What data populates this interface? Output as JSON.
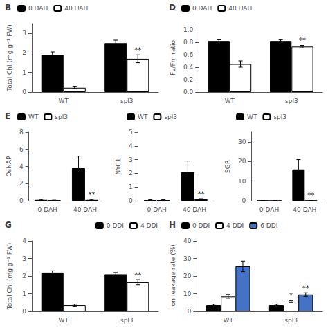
{
  "chart_data": [
    {
      "type": "bar",
      "title": "B",
      "categories": [
        "WT",
        "spl3"
      ],
      "series": [
        {
          "name": "0 DAH",
          "color": "black",
          "values": [
            1.9,
            2.5
          ],
          "errors": [
            0.15,
            0.15
          ]
        },
        {
          "name": "40 DAH",
          "color": "white",
          "values": [
            0.22,
            1.7
          ],
          "errors": [
            0.05,
            0.2
          ]
        }
      ],
      "ylabel": "Total Chl (mg g⁻¹ FW)",
      "ylim": [
        0,
        3.5
      ],
      "yticks": [
        0,
        1,
        2,
        3
      ],
      "legend": "upper left",
      "grid": false,
      "annotations": [
        {
          "text": "**",
          "category": "spl3",
          "series": "40 DAH"
        }
      ]
    },
    {
      "type": "bar",
      "title": "D",
      "categories": [
        "WT",
        "spl3"
      ],
      "series": [
        {
          "name": "0 DAH",
          "color": "black",
          "values": [
            0.82,
            0.82
          ],
          "errors": [
            0.02,
            0.02
          ]
        },
        {
          "name": "40 DAH",
          "color": "white",
          "values": [
            0.45,
            0.73
          ],
          "errors": [
            0.05,
            0.02
          ]
        }
      ],
      "ylabel": "Fv/Fm ratio",
      "ylim": [
        0,
        1.1
      ],
      "yticks": [
        {
          "value": 0,
          "label": "0.0"
        },
        0.2,
        0.4,
        0.6,
        0.8,
        {
          "value": 1,
          "label": "1.0"
        }
      ],
      "legend": "upper left",
      "grid": false,
      "annotations": [
        {
          "text": "**",
          "category": "spl3",
          "series": "40 DAH"
        }
      ]
    },
    {
      "type": "bar",
      "title": "E",
      "categories": [
        "0 DAH",
        "40 DAH"
      ],
      "series": [
        {
          "name": "WT",
          "color": "black",
          "values": [
            0.1,
            3.8
          ],
          "errors": [
            0.05,
            1.4
          ]
        },
        {
          "name": "spl3",
          "color": "white",
          "values": [
            0.05,
            0.1
          ],
          "errors": [
            0.02,
            0.05
          ]
        }
      ],
      "ylabel": "OsNAP",
      "ylim": [
        0,
        8
      ],
      "yticks": [
        0,
        2,
        4,
        6,
        8
      ],
      "legend": "upper left",
      "grid": false,
      "annotations": [
        {
          "text": "**",
          "category": "40 DAH",
          "series": "spl3"
        }
      ]
    },
    {
      "type": "bar",
      "categories": [
        "0 DAH",
        "40 DAH"
      ],
      "series": [
        {
          "name": "WT",
          "color": "black",
          "values": [
            0.05,
            2.1
          ],
          "errors": [
            0.02,
            0.8
          ]
        },
        {
          "name": "spl3",
          "color": "white",
          "values": [
            0.05,
            0.1
          ],
          "errors": [
            0.02,
            0.05
          ]
        }
      ],
      "ylabel": "NYC1",
      "ylim": [
        0,
        5
      ],
      "yticks": [
        0,
        1,
        2,
        3,
        4,
        5
      ],
      "legend": "upper left",
      "grid": false,
      "annotations": [
        {
          "text": "**",
          "category": "40 DAH",
          "series": "spl3"
        }
      ]
    },
    {
      "type": "bar",
      "categories": [
        "0 DAH",
        "40 DAH"
      ],
      "series": [
        {
          "name": "WT",
          "color": "black",
          "values": [
            0.1,
            16.0
          ],
          "errors": [
            0.05,
            5.0
          ]
        },
        {
          "name": "spl3",
          "color": "white",
          "values": [
            0.05,
            0.1
          ],
          "errors": [
            0.02,
            0.05
          ]
        }
      ],
      "ylabel": "SGR",
      "ylim": [
        0,
        35
      ],
      "yticks": [
        0,
        10,
        20,
        30
      ],
      "legend": "upper left",
      "grid": false,
      "annotations": [
        {
          "text": "**",
          "category": "40 DAH",
          "series": "spl3"
        }
      ]
    },
    {
      "type": "bar",
      "title": "G",
      "categories": [
        "WT",
        "spl3"
      ],
      "series": [
        {
          "name": "0 DDI",
          "color": "black",
          "values": [
            2.2,
            2.1
          ],
          "errors": [
            0.1,
            0.1
          ]
        },
        {
          "name": "4 DDI",
          "color": "white",
          "values": [
            0.35,
            1.65
          ],
          "errors": [
            0.05,
            0.15
          ]
        }
      ],
      "ylabel": "Total Chl (mg g⁻¹ FW)",
      "ylim": [
        0,
        4
      ],
      "yticks": [
        0,
        1,
        2,
        3,
        4
      ],
      "legend": "upper right",
      "grid": false,
      "annotations": [
        {
          "text": "**",
          "category": "spl3",
          "series": "4 DDI"
        }
      ]
    },
    {
      "type": "bar",
      "title": "H",
      "categories": [
        "WT",
        "spl3"
      ],
      "series": [
        {
          "name": "0 DDI",
          "color": "black",
          "values": [
            3.5,
            3.5
          ],
          "errors": [
            0.5,
            0.5
          ]
        },
        {
          "name": "4 DDI",
          "color": "white",
          "values": [
            8.5,
            5.5
          ],
          "errors": [
            1.0,
            0.5
          ]
        },
        {
          "name": "6 DDI",
          "color": "#4472c4",
          "values": [
            25.5,
            9.5
          ],
          "errors": [
            3.0,
            1.0
          ]
        }
      ],
      "ylabel": "Ion leakage rate (%)",
      "ylim": [
        0,
        40
      ],
      "yticks": [
        0,
        10,
        20,
        30,
        40
      ],
      "legend": "upper left",
      "grid": false,
      "annotations": [
        {
          "text": "*",
          "category": "spl3",
          "series": "4 DDI"
        },
        {
          "text": "**",
          "category": "spl3",
          "series": "6 DDI"
        }
      ]
    }
  ]
}
